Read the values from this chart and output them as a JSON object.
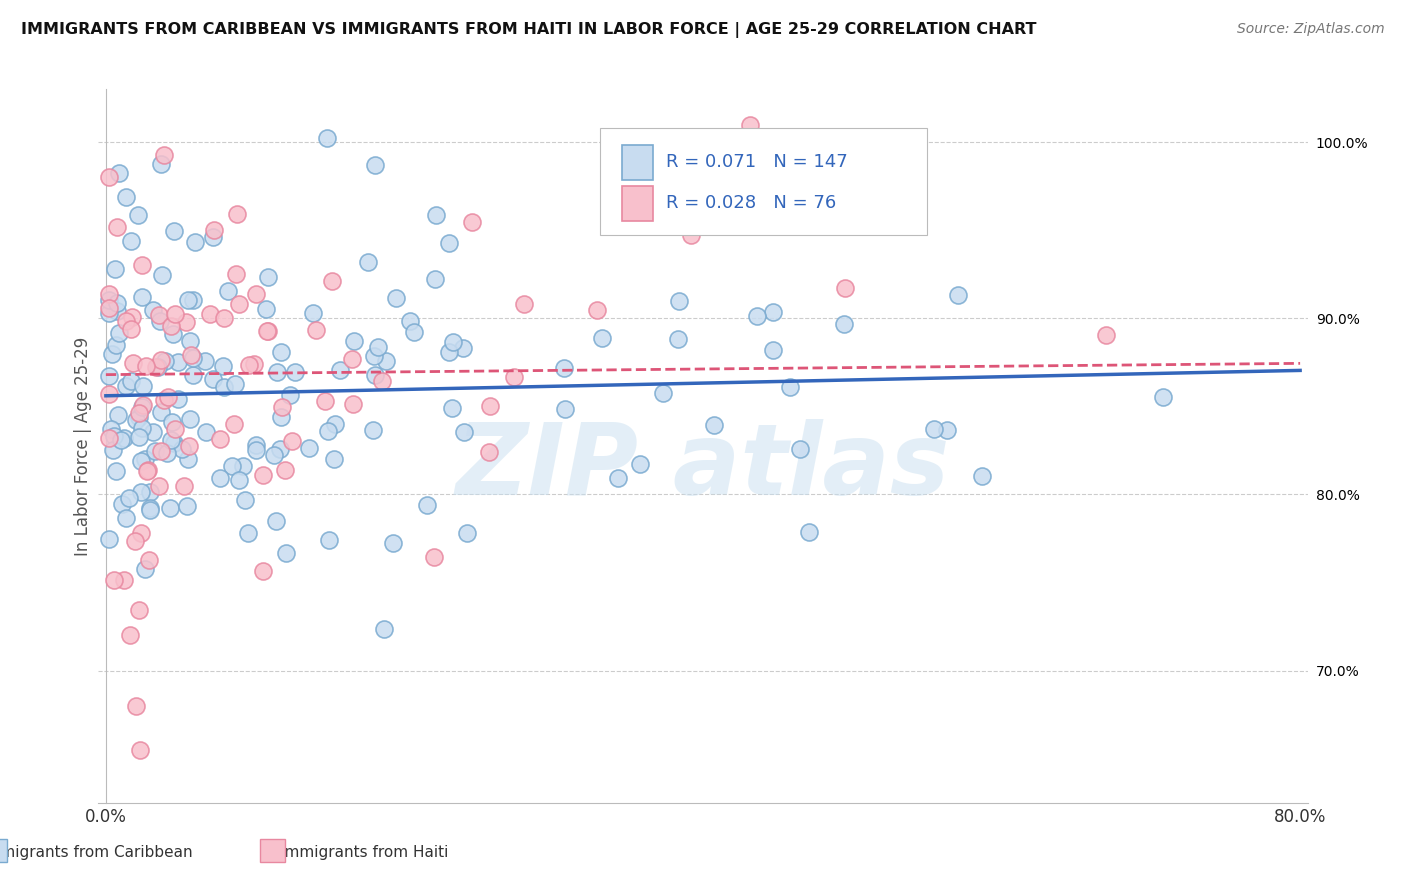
{
  "title": "IMMIGRANTS FROM CARIBBEAN VS IMMIGRANTS FROM HAITI IN LABOR FORCE | AGE 25-29 CORRELATION CHART",
  "source": "Source: ZipAtlas.com",
  "ylabel": "In Labor Force | Age 25-29",
  "legend_label1": "Immigrants from Caribbean",
  "legend_label2": "Immigrants from Haiti",
  "r1": 0.071,
  "n1": 147,
  "r2": 0.028,
  "n2": 76,
  "color1_fill": "#c8dcf0",
  "color1_edge": "#7aaad0",
  "color2_fill": "#f8c0cc",
  "color2_edge": "#e888a0",
  "trendline1_color": "#3366bb",
  "trendline2_color": "#dd5577",
  "background_color": "#ffffff",
  "xlim": [
    -0.005,
    0.805
  ],
  "ylim": [
    0.625,
    1.03
  ],
  "yticks": [
    0.7,
    0.8,
    0.9,
    1.0
  ],
  "ytick_labels": [
    "70.0%",
    "80.0%",
    "90.0%",
    "100.0%"
  ],
  "xticks": [
    0.0,
    0.1,
    0.2,
    0.3,
    0.4,
    0.5,
    0.6,
    0.7,
    0.8
  ],
  "watermark_text": "ZIP atlas",
  "watermark_color": "#c8dff0",
  "trendline1_intercept": 0.856,
  "trendline1_slope": 0.018,
  "trendline2_intercept": 0.868,
  "trendline2_slope": 0.008
}
